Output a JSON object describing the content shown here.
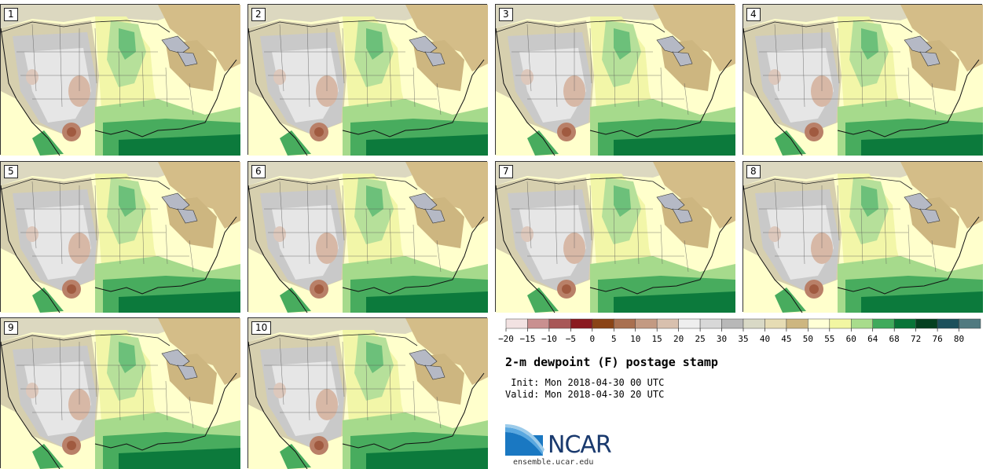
{
  "panels": [
    "1",
    "2",
    "3",
    "4",
    "5",
    "6",
    "7",
    "8",
    "9",
    "10"
  ],
  "colorbar": {
    "colors": [
      "#f2e2e2",
      "#c99090",
      "#a85858",
      "#8a1a20",
      "#8a4416",
      "#a97050",
      "#c39a82",
      "#d8c0ae",
      "#eeeeee",
      "#d8d8d8",
      "#b8b8b8",
      "#d9d9c6",
      "#e6dcb4",
      "#cdb680",
      "#ffffd6",
      "#f2f6a2",
      "#a8dc8c",
      "#40aa5c",
      "#087438",
      "#044020",
      "#1c505c",
      "#507a80"
    ],
    "ticks": [
      "−20",
      "−15",
      "−10",
      "−5",
      "0",
      "5",
      "10",
      "15",
      "20",
      "25",
      "30",
      "35",
      "40",
      "45",
      "50",
      "55",
      "60",
      "64",
      "68",
      "72",
      "76",
      "80"
    ]
  },
  "title": "2-m dewpoint (F) postage stamp",
  "init": " Init: Mon 2018-04-30 00 UTC",
  "valid": "Valid: Mon 2018-04-30 20 UTC",
  "logo": {
    "name": "NCAR",
    "url": "ensemble.ucar.edu"
  }
}
